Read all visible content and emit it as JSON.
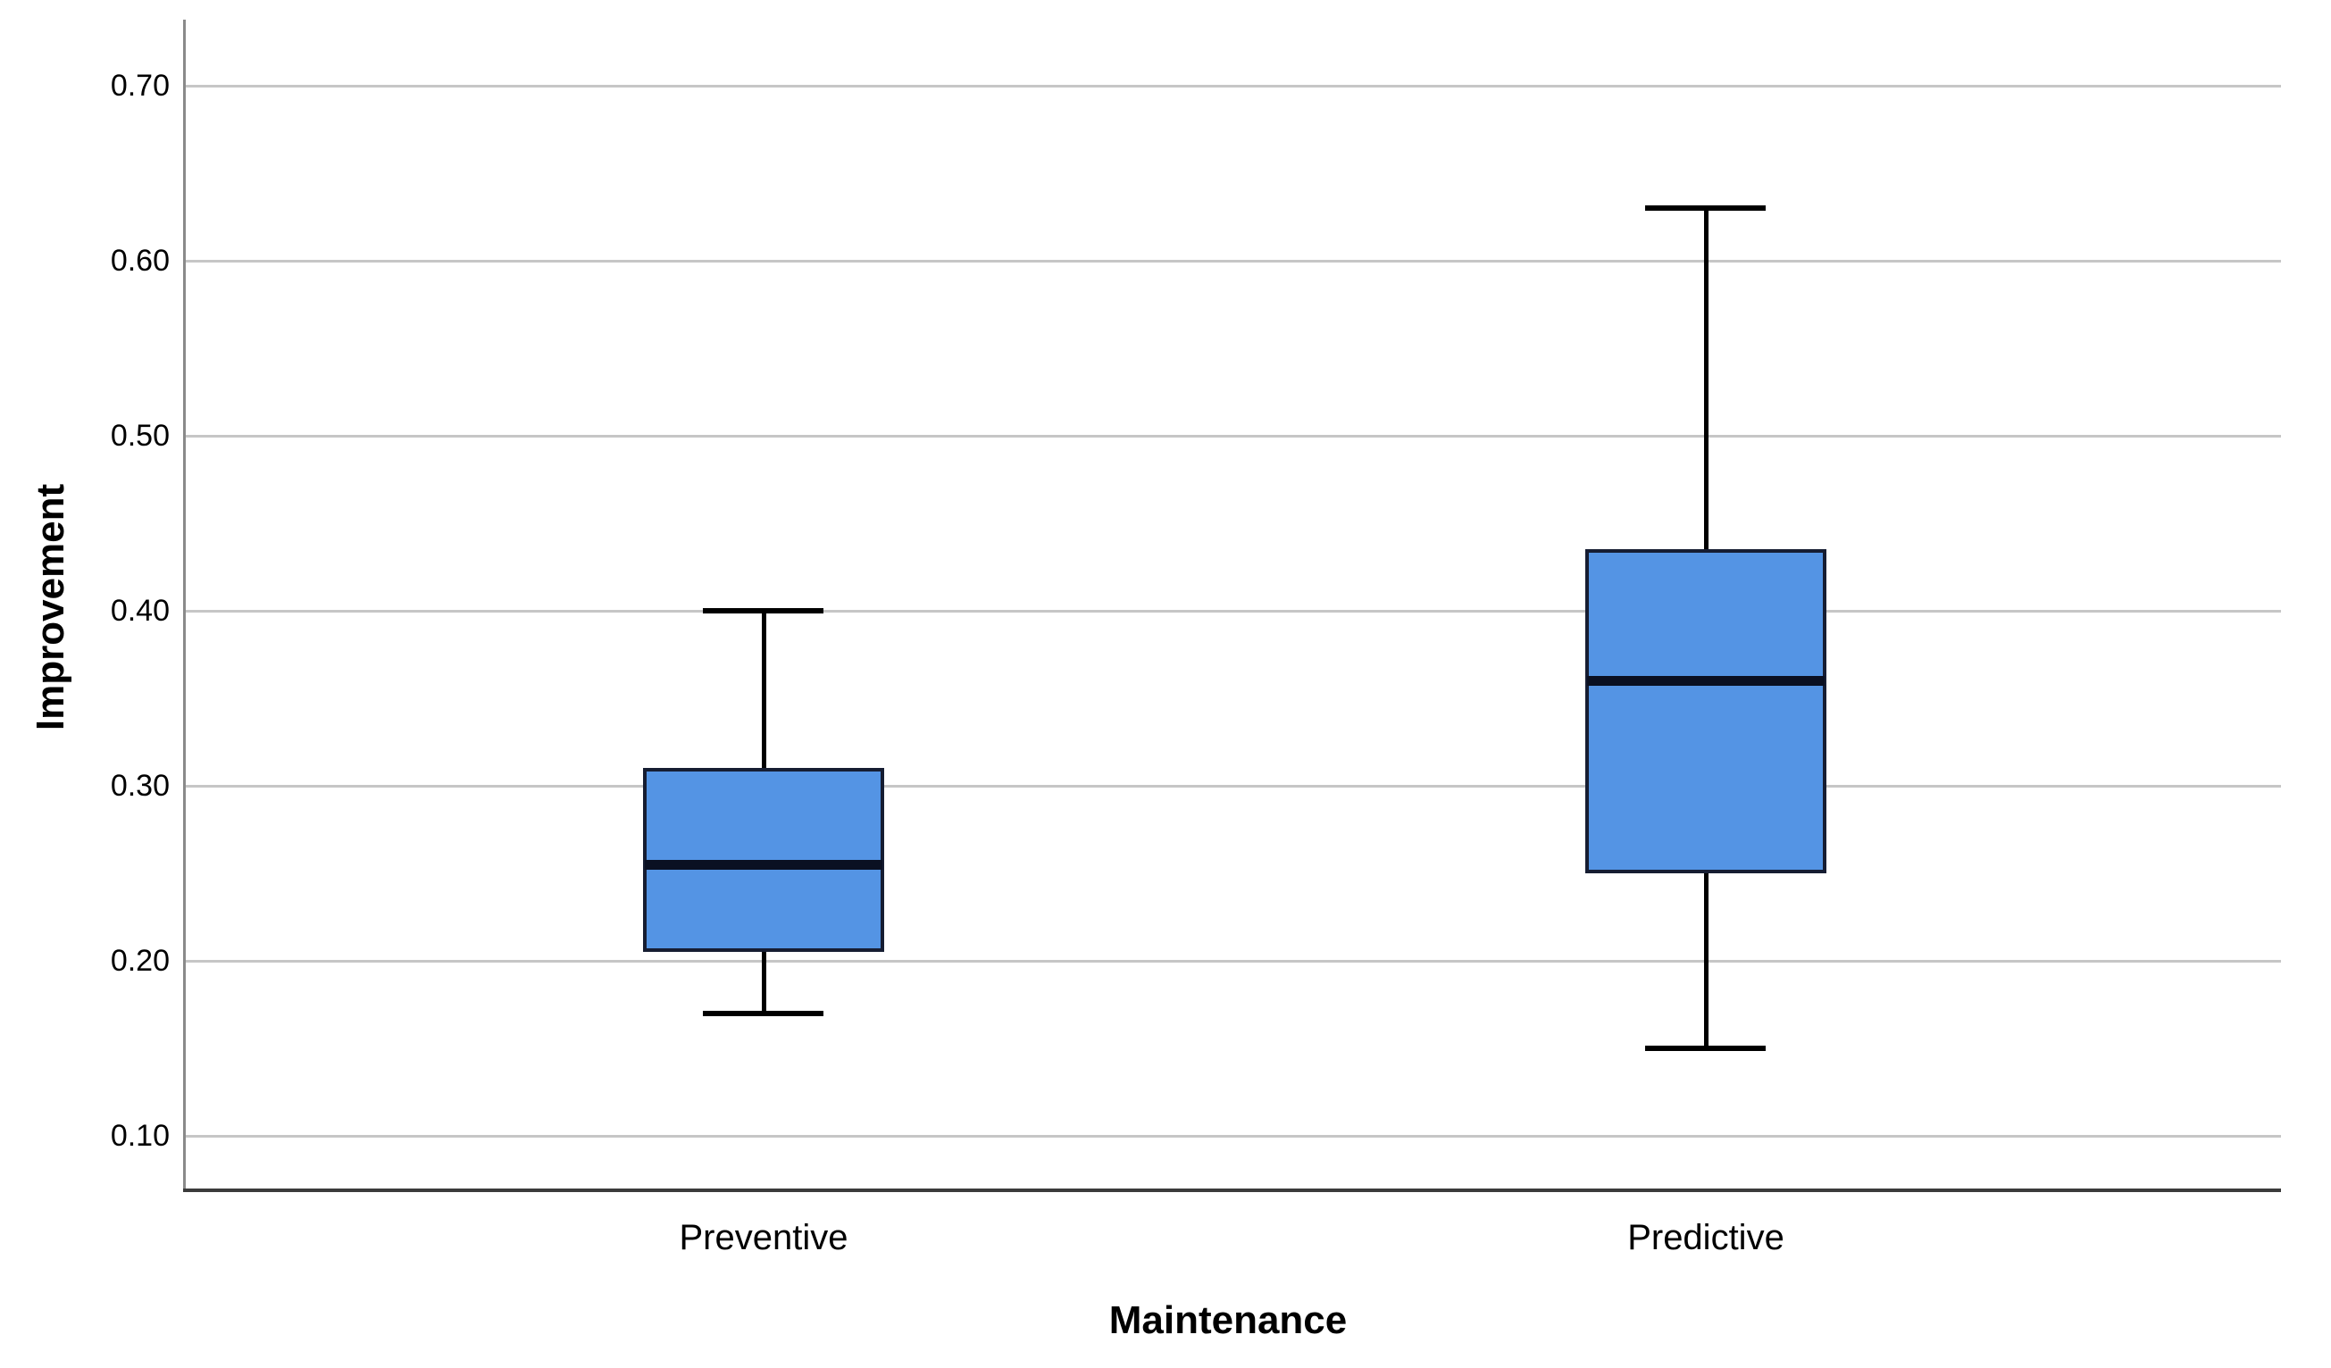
{
  "chart_data": {
    "type": "boxplot",
    "title": "",
    "xlabel": "Maintenance",
    "ylabel": "Improvement",
    "categories": [
      "Preventive",
      "Predictive"
    ],
    "series": [
      {
        "name": "Preventive",
        "min": 0.17,
        "q1": 0.205,
        "median": 0.255,
        "q3": 0.31,
        "max": 0.4
      },
      {
        "name": "Predictive",
        "min": 0.15,
        "q1": 0.25,
        "median": 0.36,
        "q3": 0.435,
        "max": 0.63
      }
    ],
    "y_ticks": [
      "0.70",
      "0.60",
      "0.50",
      "0.40",
      "0.30",
      "0.20",
      "0.10"
    ],
    "y_tick_values": [
      0.7,
      0.6,
      0.5,
      0.4,
      0.3,
      0.2,
      0.1
    ],
    "ylim": [
      0.069,
      0.738
    ],
    "grid": true,
    "legend": "none",
    "colors": {
      "box_fill": "#5494E4",
      "box_border": "#161d32",
      "median": "#0a1022",
      "whisker": "#000000",
      "gridline": "#c6c6c6",
      "y_axis_line": "#8a8a8a",
      "x_axis_line": "#3b3b3b",
      "text": "#000000",
      "background": "#ffffff"
    }
  }
}
